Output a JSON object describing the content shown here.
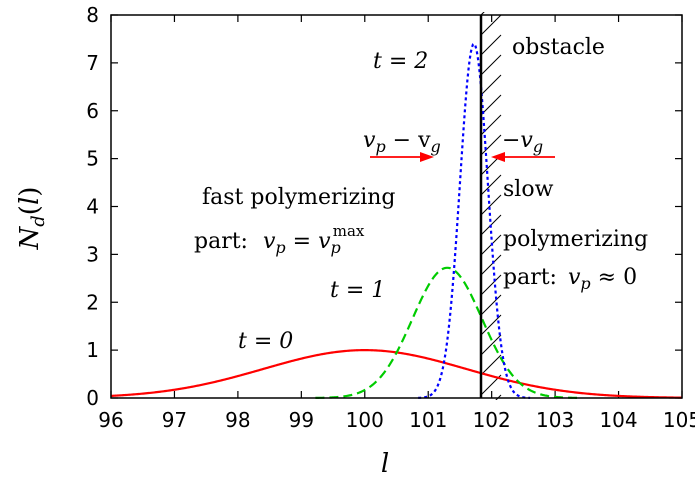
{
  "chart_data": {
    "type": "line",
    "title": "",
    "xlabel": "l",
    "ylabel": "N_d(l)",
    "xlim": [
      96,
      105
    ],
    "ylim": [
      0,
      8
    ],
    "xticks": [
      96,
      97,
      98,
      99,
      100,
      101,
      102,
      103,
      104,
      105
    ],
    "yticks": [
      0,
      1,
      2,
      3,
      4,
      5,
      6,
      7,
      8
    ],
    "obstacle_x": 102,
    "series": [
      {
        "name": "t = 0",
        "color": "#ff0000",
        "style": "solid",
        "gaussian": {
          "amplitude": 1.0,
          "mean": 100.0,
          "sigma": 1.6
        }
      },
      {
        "name": "t = 1",
        "color": "#00cc00",
        "style": "dashed",
        "gaussian": {
          "amplitude": 2.72,
          "mean": 101.3,
          "sigma": 0.55
        }
      },
      {
        "name": "t = 2",
        "color": "#0000ff",
        "style": "dotted",
        "gaussian": {
          "amplitude": 7.4,
          "mean": 101.72,
          "sigma": 0.22
        }
      }
    ],
    "annotations": {
      "obstacle": "obstacle",
      "t2": "t = 2",
      "t1": "t = 1",
      "t0": "t = 0",
      "fast_line1": "fast polymerizing",
      "fast_line2_prefix": "part:",
      "fast_line2_math": "v",
      "fast_line2_sub": "p",
      "fast_line2_eq": " = v",
      "fast_line2_sub2": "p",
      "fast_line2_sup": "max",
      "left_arrow_label_v1": "v",
      "left_arrow_label_s1": "p",
      "left_arrow_label_mid": " − v",
      "left_arrow_label_s2": "g",
      "right_arrow_label_pre": "−v",
      "right_arrow_label_s": "g",
      "slow_line1": "slow",
      "slow_line2": "polymerizing",
      "slow_line3_prefix": "part:",
      "slow_line3_math": "v",
      "slow_line3_sub": "p",
      "slow_line3_rest": " ≈ 0"
    },
    "arrow_color": "#ff0000"
  }
}
